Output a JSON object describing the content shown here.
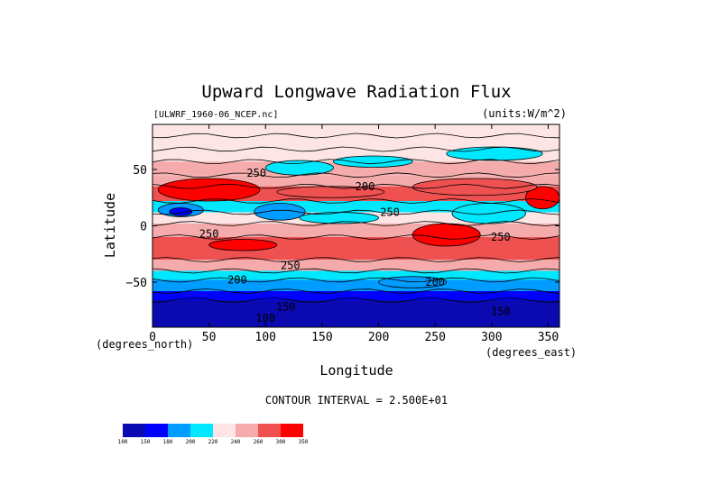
{
  "chart_data": {
    "type": "heatmap",
    "title": "Upward Longwave Radiation Flux",
    "source_label": "[ULWRF_1960-06_NCEP.nc]",
    "units_label": "(units:W/m^2)",
    "xlabel": "Longitude",
    "ylabel": "Latitude",
    "x_unit_label": "(degrees_east)",
    "y_unit_label": "(degrees_north)",
    "xlim": [
      0,
      360
    ],
    "ylim": [
      -90,
      90
    ],
    "x_ticks": [
      0,
      50,
      100,
      150,
      200,
      250,
      300,
      350
    ],
    "y_ticks": [
      -50,
      0,
      50
    ],
    "contour_interval_text": "CONTOUR INTERVAL = 2.500E+01",
    "contour_labels": [
      {
        "text": "250",
        "lon": 92,
        "lat": 47
      },
      {
        "text": "200",
        "lon": 188,
        "lat": 35
      },
      {
        "text": "250",
        "lon": 210,
        "lat": 12
      },
      {
        "text": "250",
        "lon": 50,
        "lat": -7
      },
      {
        "text": "250",
        "lon": 308,
        "lat": -10
      },
      {
        "text": "250",
        "lon": 122,
        "lat": -35
      },
      {
        "text": "200",
        "lon": 75,
        "lat": -48
      },
      {
        "text": "200",
        "lon": 250,
        "lat": -50
      },
      {
        "text": "150",
        "lon": 118,
        "lat": -72
      },
      {
        "text": "150",
        "lon": 308,
        "lat": -76
      },
      {
        "text": "100",
        "lon": 100,
        "lat": -82
      }
    ],
    "colorbar": {
      "ticks": [
        "100",
        "150",
        "180",
        "200",
        "220",
        "240",
        "260",
        "300",
        "350"
      ],
      "colors": [
        "#0a0ab0",
        "#0000ff",
        "#009cff",
        "#00e8ff",
        "#fde5e5",
        "#f5abab",
        "#ef5050",
        "#ff0000"
      ]
    },
    "bands": [
      {
        "lat_top": 90,
        "lat_bottom": 80,
        "level": 4
      },
      {
        "lat_top": 80,
        "lat_bottom": 68,
        "level": 4
      },
      {
        "lat_top": 68,
        "lat_bottom": 57,
        "level": 4
      },
      {
        "lat_top": 57,
        "lat_bottom": 45,
        "level": 5
      },
      {
        "lat_top": 45,
        "lat_bottom": 35,
        "level": 5
      },
      {
        "lat_top": 35,
        "lat_bottom": 22,
        "level": 6
      },
      {
        "lat_top": 22,
        "lat_bottom": 12,
        "level": 3
      },
      {
        "lat_top": 12,
        "lat_bottom": 2,
        "level": 4
      },
      {
        "lat_top": 2,
        "lat_bottom": -10,
        "level": 5
      },
      {
        "lat_top": -10,
        "lat_bottom": -30,
        "level": 6
      },
      {
        "lat_top": -30,
        "lat_bottom": -40,
        "level": 5
      },
      {
        "lat_top": -40,
        "lat_bottom": -48,
        "level": 3
      },
      {
        "lat_top": -48,
        "lat_bottom": -58,
        "level": 2
      },
      {
        "lat_top": -58,
        "lat_bottom": -66,
        "level": 1
      },
      {
        "lat_top": -66,
        "lat_bottom": -90,
        "level": 0
      }
    ],
    "features": [
      {
        "lon_start": 5,
        "lon_end": 95,
        "lat_top": 42,
        "lat_bottom": 22,
        "level": 7
      },
      {
        "lon_start": 330,
        "lon_end": 360,
        "lat_top": 35,
        "lat_bottom": 15,
        "level": 7
      },
      {
        "lon_start": 230,
        "lon_end": 340,
        "lat_top": 42,
        "lat_bottom": 27,
        "level": 6
      },
      {
        "lon_start": 110,
        "lon_end": 205,
        "lat_top": 35,
        "lat_bottom": 25,
        "level": 6
      },
      {
        "lon_start": 100,
        "lon_end": 160,
        "lat_top": 58,
        "lat_bottom": 45,
        "level": 3
      },
      {
        "lon_start": 160,
        "lon_end": 230,
        "lat_top": 62,
        "lat_bottom": 52,
        "level": 3
      },
      {
        "lon_start": 260,
        "lon_end": 345,
        "lat_top": 70,
        "lat_bottom": 58,
        "level": 3
      },
      {
        "lon_start": 5,
        "lon_end": 45,
        "lat_top": 20,
        "lat_bottom": 8,
        "level": 2
      },
      {
        "lon_start": 15,
        "lon_end": 35,
        "lat_top": 16,
        "lat_bottom": 9,
        "level": 1
      },
      {
        "lon_start": 90,
        "lon_end": 135,
        "lat_top": 20,
        "lat_bottom": 5,
        "level": 2
      },
      {
        "lon_start": 265,
        "lon_end": 330,
        "lat_top": 20,
        "lat_bottom": 2,
        "level": 3
      },
      {
        "lon_start": 130,
        "lon_end": 200,
        "lat_top": 12,
        "lat_bottom": 2,
        "level": 3
      },
      {
        "lon_start": 230,
        "lon_end": 290,
        "lat_top": 2,
        "lat_bottom": -18,
        "level": 7
      },
      {
        "lon_start": 50,
        "lon_end": 110,
        "lat_top": -12,
        "lat_bottom": -22,
        "level": 7
      },
      {
        "lon_start": 200,
        "lon_end": 260,
        "lat_top": -45,
        "lat_bottom": -55,
        "level": 2
      }
    ]
  }
}
